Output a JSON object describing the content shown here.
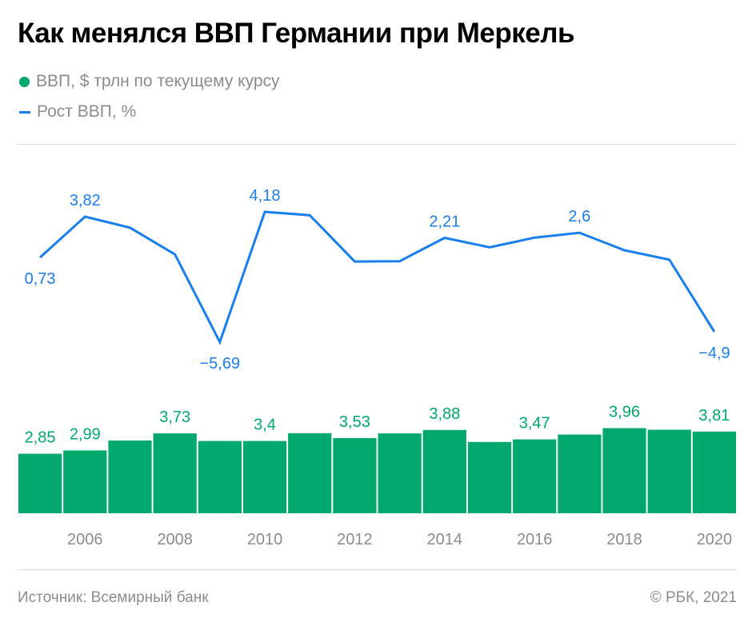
{
  "title": "Как менялся ВВП Германии при Меркель",
  "legend": {
    "gdp_label": "ВВП, $ трлн по текущему курсу",
    "growth_label": "Рост ВВП, %"
  },
  "colors": {
    "gdp": "#00a86b",
    "growth": "#1a7fee",
    "axis_text": "#8c8c8c"
  },
  "footer": {
    "source": "Источник: Всемирный банк",
    "copyright": "© РБК, 2021"
  },
  "chart_data": {
    "type": "bar+line",
    "years": [
      2005,
      2006,
      2007,
      2008,
      2009,
      2010,
      2011,
      2012,
      2013,
      2014,
      2015,
      2016,
      2017,
      2018,
      2019,
      2020
    ],
    "x_tick_labels": [
      "2006",
      "2008",
      "2010",
      "2012",
      "2014",
      "2016",
      "2018",
      "2020"
    ],
    "series": [
      {
        "name": "ВВП, $ трлн по текущему курсу",
        "type": "bar",
        "values": [
          2.85,
          2.99,
          3.42,
          3.73,
          3.4,
          3.4,
          3.74,
          3.53,
          3.73,
          3.88,
          3.36,
          3.47,
          3.68,
          3.96,
          3.89,
          3.81
        ],
        "labels": [
          "2,85",
          "2,99",
          "",
          "3,73",
          "",
          "3,4",
          "",
          "3,53",
          "",
          "3,88",
          "",
          "3,47",
          "",
          "3,96",
          "",
          "3,81"
        ]
      },
      {
        "name": "Рост ВВП, %",
        "type": "line",
        "values": [
          0.73,
          3.82,
          2.98,
          0.96,
          -5.69,
          4.18,
          3.93,
          0.42,
          0.44,
          2.21,
          1.49,
          2.23,
          2.6,
          1.27,
          0.56,
          -4.9
        ],
        "labels": [
          "0,73",
          "3,82",
          "",
          "",
          "−5,69",
          "4,18",
          "",
          "",
          "",
          "2,21",
          "",
          "",
          "2,6",
          "",
          "",
          "−4,9"
        ]
      }
    ]
  }
}
